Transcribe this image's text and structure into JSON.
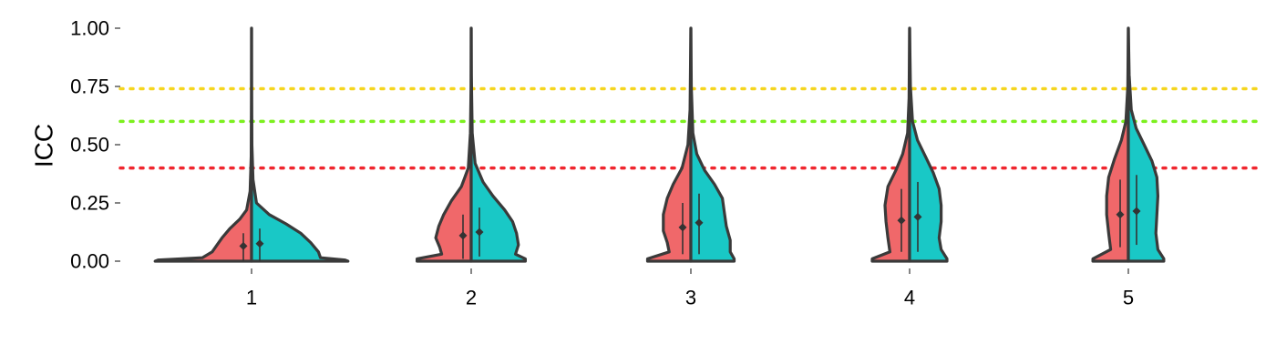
{
  "chart_data": {
    "type": "violin",
    "title": "",
    "xlabel": "",
    "ylabel": "ICC",
    "ylim": [
      0,
      1
    ],
    "yticks": [
      0.0,
      0.25,
      0.5,
      0.75,
      1.0
    ],
    "ytick_labels": [
      "0.00",
      "0.25",
      "0.50",
      "0.75",
      "1.00"
    ],
    "categories": [
      "1",
      "2",
      "3",
      "4",
      "5"
    ],
    "grid": false,
    "reference_lines": [
      {
        "y": 0.74,
        "color": "#F5D51E",
        "style": "dotted"
      },
      {
        "y": 0.6,
        "color": "#7CF01E",
        "style": "dotted"
      },
      {
        "y": 0.4,
        "color": "#F0262E",
        "style": "dotted"
      }
    ],
    "series": [
      {
        "color": "#F0686A",
        "side": "left",
        "groups": [
          {
            "category": "1",
            "mean": 0.065,
            "sd_low": 0.0,
            "sd_high": 0.12,
            "density": [
              [
                0.0,
                0.98
              ],
              [
                0.005,
                0.95
              ],
              [
                0.015,
                0.5
              ],
              [
                0.04,
                0.4
              ],
              [
                0.07,
                0.35
              ],
              [
                0.1,
                0.3
              ],
              [
                0.14,
                0.22
              ],
              [
                0.18,
                0.12
              ],
              [
                0.22,
                0.05
              ],
              [
                0.3,
                0.015
              ],
              [
                0.45,
                0.004
              ],
              [
                0.7,
                0.001
              ],
              [
                1.0,
                0.0
              ]
            ]
          },
          {
            "category": "2",
            "mean": 0.11,
            "sd_low": 0.01,
            "sd_high": 0.2,
            "density": [
              [
                0.0,
                0.55
              ],
              [
                0.01,
                0.55
              ],
              [
                0.03,
                0.3
              ],
              [
                0.06,
                0.32
              ],
              [
                0.1,
                0.36
              ],
              [
                0.15,
                0.33
              ],
              [
                0.2,
                0.28
              ],
              [
                0.26,
                0.2
              ],
              [
                0.32,
                0.1
              ],
              [
                0.4,
                0.03
              ],
              [
                0.55,
                0.008
              ],
              [
                0.75,
                0.002
              ],
              [
                1.0,
                0.0
              ]
            ]
          },
          {
            "category": "3",
            "mean": 0.145,
            "sd_low": 0.03,
            "sd_high": 0.25,
            "density": [
              [
                0.0,
                0.44
              ],
              [
                0.01,
                0.44
              ],
              [
                0.04,
                0.22
              ],
              [
                0.08,
                0.24
              ],
              [
                0.13,
                0.28
              ],
              [
                0.2,
                0.28
              ],
              [
                0.27,
                0.24
              ],
              [
                0.33,
                0.18
              ],
              [
                0.4,
                0.09
              ],
              [
                0.5,
                0.03
              ],
              [
                0.65,
                0.008
              ],
              [
                1.0,
                0.0
              ]
            ]
          },
          {
            "category": "4",
            "mean": 0.175,
            "sd_low": 0.04,
            "sd_high": 0.31,
            "density": [
              [
                0.0,
                0.38
              ],
              [
                0.01,
                0.38
              ],
              [
                0.04,
                0.2
              ],
              [
                0.1,
                0.22
              ],
              [
                0.17,
                0.24
              ],
              [
                0.24,
                0.25
              ],
              [
                0.32,
                0.22
              ],
              [
                0.39,
                0.14
              ],
              [
                0.46,
                0.07
              ],
              [
                0.55,
                0.02
              ],
              [
                0.7,
                0.006
              ],
              [
                1.0,
                0.0
              ]
            ]
          },
          {
            "category": "5",
            "mean": 0.2,
            "sd_low": 0.06,
            "sd_high": 0.35,
            "density": [
              [
                0.0,
                0.36
              ],
              [
                0.01,
                0.36
              ],
              [
                0.05,
                0.18
              ],
              [
                0.12,
                0.2
              ],
              [
                0.2,
                0.22
              ],
              [
                0.28,
                0.22
              ],
              [
                0.36,
                0.2
              ],
              [
                0.44,
                0.14
              ],
              [
                0.52,
                0.07
              ],
              [
                0.6,
                0.025
              ],
              [
                0.75,
                0.006
              ],
              [
                1.0,
                0.0
              ]
            ]
          }
        ]
      },
      {
        "color": "#19C8C6",
        "side": "right",
        "groups": [
          {
            "category": "1",
            "mean": 0.075,
            "sd_low": 0.0,
            "sd_high": 0.14,
            "density": [
              [
                0.0,
                0.98
              ],
              [
                0.005,
                0.95
              ],
              [
                0.015,
                0.7
              ],
              [
                0.04,
                0.68
              ],
              [
                0.08,
                0.6
              ],
              [
                0.12,
                0.5
              ],
              [
                0.16,
                0.35
              ],
              [
                0.2,
                0.18
              ],
              [
                0.25,
                0.05
              ],
              [
                0.35,
                0.015
              ],
              [
                0.5,
                0.004
              ],
              [
                0.75,
                0.001
              ],
              [
                1.0,
                0.0
              ]
            ]
          },
          {
            "category": "2",
            "mean": 0.125,
            "sd_low": 0.02,
            "sd_high": 0.23,
            "density": [
              [
                0.0,
                0.55
              ],
              [
                0.01,
                0.55
              ],
              [
                0.03,
                0.45
              ],
              [
                0.07,
                0.48
              ],
              [
                0.12,
                0.46
              ],
              [
                0.17,
                0.42
              ],
              [
                0.22,
                0.34
              ],
              [
                0.28,
                0.22
              ],
              [
                0.34,
                0.12
              ],
              [
                0.42,
                0.04
              ],
              [
                0.55,
                0.01
              ],
              [
                0.8,
                0.002
              ],
              [
                1.0,
                0.0
              ]
            ]
          },
          {
            "category": "3",
            "mean": 0.165,
            "sd_low": 0.03,
            "sd_high": 0.29,
            "density": [
              [
                0.0,
                0.44
              ],
              [
                0.01,
                0.44
              ],
              [
                0.04,
                0.4
              ],
              [
                0.09,
                0.4
              ],
              [
                0.15,
                0.36
              ],
              [
                0.21,
                0.34
              ],
              [
                0.27,
                0.32
              ],
              [
                0.33,
                0.24
              ],
              [
                0.39,
                0.14
              ],
              [
                0.46,
                0.06
              ],
              [
                0.55,
                0.02
              ],
              [
                0.75,
                0.005
              ],
              [
                1.0,
                0.0
              ]
            ]
          },
          {
            "category": "4",
            "mean": 0.19,
            "sd_low": 0.04,
            "sd_high": 0.34,
            "density": [
              [
                0.0,
                0.38
              ],
              [
                0.01,
                0.38
              ],
              [
                0.05,
                0.32
              ],
              [
                0.1,
                0.3
              ],
              [
                0.17,
                0.32
              ],
              [
                0.24,
                0.32
              ],
              [
                0.31,
                0.3
              ],
              [
                0.38,
                0.24
              ],
              [
                0.45,
                0.16
              ],
              [
                0.52,
                0.08
              ],
              [
                0.6,
                0.03
              ],
              [
                0.75,
                0.008
              ],
              [
                1.0,
                0.0
              ]
            ]
          },
          {
            "category": "5",
            "mean": 0.215,
            "sd_low": 0.07,
            "sd_high": 0.37,
            "density": [
              [
                0.0,
                0.36
              ],
              [
                0.01,
                0.36
              ],
              [
                0.05,
                0.3
              ],
              [
                0.12,
                0.28
              ],
              [
                0.2,
                0.29
              ],
              [
                0.28,
                0.3
              ],
              [
                0.36,
                0.29
              ],
              [
                0.43,
                0.24
              ],
              [
                0.5,
                0.16
              ],
              [
                0.57,
                0.08
              ],
              [
                0.65,
                0.03
              ],
              [
                0.8,
                0.008
              ],
              [
                1.0,
                0.0
              ]
            ]
          }
        ]
      }
    ]
  }
}
